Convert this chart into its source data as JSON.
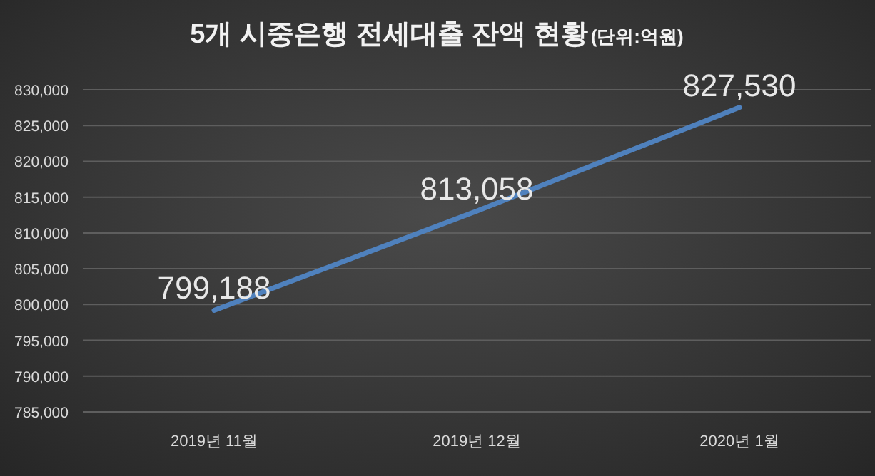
{
  "chart_data": {
    "type": "line",
    "title": "5개 시중은행 전세대출 잔액 현황",
    "subtitle": "(단위:억원)",
    "categories": [
      "2019년 11월",
      "2019년 12월",
      "2020년 1월"
    ],
    "series": [
      {
        "color": "#4f81bd",
        "values": [
          799188,
          813058,
          827530
        ],
        "value_labels": [
          "799,188",
          "813,058",
          "827,530"
        ]
      }
    ],
    "ylim": [
      785000,
      830000
    ],
    "yticks": [
      {
        "value": 785000,
        "label": "785,000"
      },
      {
        "value": 790000,
        "label": "790,000"
      },
      {
        "value": 795000,
        "label": "795,000"
      },
      {
        "value": 800000,
        "label": "800,000"
      },
      {
        "value": 805000,
        "label": "805,000"
      },
      {
        "value": 810000,
        "label": "810,000"
      },
      {
        "value": 815000,
        "label": "815,000"
      },
      {
        "value": 820000,
        "label": "820,000"
      },
      {
        "value": 825000,
        "label": "825,000"
      },
      {
        "value": 830000,
        "label": "830,000"
      }
    ],
    "grid": "y",
    "marker": "none",
    "line_style": "solid"
  }
}
